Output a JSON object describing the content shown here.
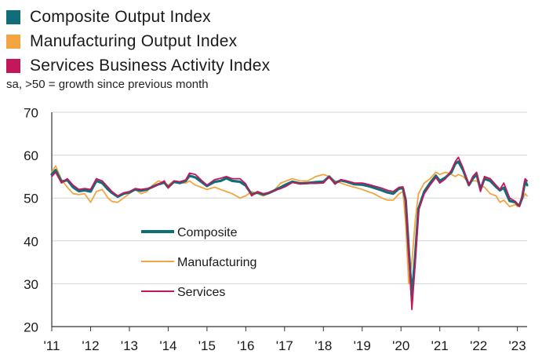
{
  "top_legend": [
    {
      "label": "Composite Output Index",
      "color": "#0f6e7a"
    },
    {
      "label": "Manufacturing Output Index",
      "color": "#f2a541"
    },
    {
      "label": "Services Business Activity Index",
      "color": "#c2185b"
    }
  ],
  "note": "sa, >50 = growth since previous month",
  "chart_data": {
    "type": "line",
    "title": "",
    "xlabel": "",
    "ylabel": "",
    "ylim": [
      20,
      70
    ],
    "yticks": [
      20,
      30,
      40,
      50,
      60,
      70
    ],
    "xlim": [
      2011,
      2023.25
    ],
    "xticks": [
      {
        "x": 2011,
        "label": "'11"
      },
      {
        "x": 2012,
        "label": "'12"
      },
      {
        "x": 2013,
        "label": "'13"
      },
      {
        "x": 2014,
        "label": "'14"
      },
      {
        "x": 2015,
        "label": "'15"
      },
      {
        "x": 2016,
        "label": "'16"
      },
      {
        "x": 2017,
        "label": "'17"
      },
      {
        "x": 2018,
        "label": "'18"
      },
      {
        "x": 2019,
        "label": "'19"
      },
      {
        "x": 2020,
        "label": "'20"
      },
      {
        "x": 2021,
        "label": "'21"
      },
      {
        "x": 2022,
        "label": "'22"
      },
      {
        "x": 2023,
        "label": "'23"
      }
    ],
    "grid": "horizontal",
    "inner_legend": [
      "Composite",
      "Manufacturing",
      "Services"
    ],
    "series": [
      {
        "name": "Composite",
        "color": "#0f6e7a",
        "points": [
          [
            2011.0,
            55.5
          ],
          [
            2011.1,
            56.5
          ],
          [
            2011.25,
            53.8
          ],
          [
            2011.4,
            54.2
          ],
          [
            2011.55,
            52.5
          ],
          [
            2011.7,
            51.6
          ],
          [
            2011.85,
            51.8
          ],
          [
            2012.0,
            51.5
          ],
          [
            2012.15,
            54.0
          ],
          [
            2012.3,
            53.5
          ],
          [
            2012.45,
            52.0
          ],
          [
            2012.55,
            51.2
          ],
          [
            2012.7,
            50.3
          ],
          [
            2012.85,
            51.0
          ],
          [
            2013.0,
            51.3
          ],
          [
            2013.15,
            52.0
          ],
          [
            2013.3,
            51.7
          ],
          [
            2013.45,
            52.0
          ],
          [
            2013.6,
            52.6
          ],
          [
            2013.75,
            53.2
          ],
          [
            2013.9,
            53.6
          ],
          [
            2014.0,
            52.5
          ],
          [
            2014.15,
            53.8
          ],
          [
            2014.3,
            53.5
          ],
          [
            2014.45,
            54.0
          ],
          [
            2014.55,
            55.2
          ],
          [
            2014.7,
            54.8
          ],
          [
            2014.85,
            53.8
          ],
          [
            2015.0,
            52.8
          ],
          [
            2015.2,
            53.8
          ],
          [
            2015.35,
            54.0
          ],
          [
            2015.5,
            54.6
          ],
          [
            2015.65,
            54.0
          ],
          [
            2015.85,
            53.8
          ],
          [
            2016.0,
            52.9
          ],
          [
            2016.15,
            50.8
          ],
          [
            2016.3,
            51.3
          ],
          [
            2016.45,
            50.8
          ],
          [
            2016.6,
            51.2
          ],
          [
            2016.75,
            51.8
          ],
          [
            2016.9,
            52.5
          ],
          [
            2017.05,
            53.2
          ],
          [
            2017.2,
            53.8
          ],
          [
            2017.4,
            53.4
          ],
          [
            2017.6,
            53.5
          ],
          [
            2017.8,
            53.7
          ],
          [
            2018.0,
            53.8
          ],
          [
            2018.15,
            55.0
          ],
          [
            2018.3,
            53.5
          ],
          [
            2018.45,
            54.1
          ],
          [
            2018.6,
            53.8
          ],
          [
            2018.8,
            53.2
          ],
          [
            2019.0,
            53.1
          ],
          [
            2019.15,
            52.8
          ],
          [
            2019.3,
            52.4
          ],
          [
            2019.5,
            51.8
          ],
          [
            2019.65,
            51.3
          ],
          [
            2019.8,
            51.0
          ],
          [
            2019.95,
            52.2
          ],
          [
            2020.05,
            52.3
          ],
          [
            2020.12,
            49.5
          ],
          [
            2020.2,
            38.0
          ],
          [
            2020.28,
            27.0
          ],
          [
            2020.37,
            37.0
          ],
          [
            2020.45,
            47.5
          ],
          [
            2020.6,
            51.5
          ],
          [
            2020.75,
            53.5
          ],
          [
            2020.9,
            55.2
          ],
          [
            2021.0,
            54.0
          ],
          [
            2021.15,
            54.8
          ],
          [
            2021.3,
            56.0
          ],
          [
            2021.4,
            58.0
          ],
          [
            2021.48,
            58.5
          ],
          [
            2021.6,
            56.5
          ],
          [
            2021.75,
            53.0
          ],
          [
            2021.85,
            54.5
          ],
          [
            2021.95,
            55.5
          ],
          [
            2022.05,
            52.0
          ],
          [
            2022.15,
            54.5
          ],
          [
            2022.3,
            54.0
          ],
          [
            2022.45,
            52.6
          ],
          [
            2022.55,
            51.8
          ],
          [
            2022.65,
            52.4
          ],
          [
            2022.8,
            49.3
          ],
          [
            2022.95,
            49.0
          ],
          [
            2023.0,
            48.5
          ],
          [
            2023.05,
            48.2
          ],
          [
            2023.12,
            50.0
          ],
          [
            2023.2,
            54.0
          ],
          [
            2023.25,
            53.0
          ]
        ]
      },
      {
        "name": "Manufacturing",
        "color": "#f2a541",
        "points": [
          [
            2011.0,
            56.0
          ],
          [
            2011.1,
            57.5
          ],
          [
            2011.25,
            54.3
          ],
          [
            2011.4,
            52.5
          ],
          [
            2011.55,
            51.0
          ],
          [
            2011.7,
            50.8
          ],
          [
            2011.85,
            51.0
          ],
          [
            2012.0,
            49.0
          ],
          [
            2012.15,
            51.5
          ],
          [
            2012.3,
            52.0
          ],
          [
            2012.45,
            50.0
          ],
          [
            2012.55,
            49.2
          ],
          [
            2012.7,
            49.0
          ],
          [
            2012.85,
            50.0
          ],
          [
            2013.0,
            51.0
          ],
          [
            2013.15,
            52.0
          ],
          [
            2013.3,
            51.0
          ],
          [
            2013.45,
            51.5
          ],
          [
            2013.6,
            53.0
          ],
          [
            2013.75,
            54.0
          ],
          [
            2013.9,
            53.5
          ],
          [
            2014.0,
            53.0
          ],
          [
            2014.15,
            54.0
          ],
          [
            2014.3,
            53.5
          ],
          [
            2014.45,
            53.5
          ],
          [
            2014.55,
            54.0
          ],
          [
            2014.7,
            53.0
          ],
          [
            2014.85,
            52.5
          ],
          [
            2015.0,
            52.0
          ],
          [
            2015.2,
            52.5
          ],
          [
            2015.35,
            52.0
          ],
          [
            2015.5,
            51.5
          ],
          [
            2015.65,
            51.0
          ],
          [
            2015.85,
            50.0
          ],
          [
            2016.0,
            50.5
          ],
          [
            2016.15,
            51.5
          ],
          [
            2016.3,
            51.0
          ],
          [
            2016.45,
            50.5
          ],
          [
            2016.6,
            51.0
          ],
          [
            2016.75,
            52.0
          ],
          [
            2016.9,
            53.5
          ],
          [
            2017.05,
            54.0
          ],
          [
            2017.2,
            54.5
          ],
          [
            2017.4,
            54.0
          ],
          [
            2017.6,
            54.0
          ],
          [
            2017.8,
            55.0
          ],
          [
            2018.0,
            55.5
          ],
          [
            2018.15,
            55.0
          ],
          [
            2018.3,
            54.0
          ],
          [
            2018.45,
            53.5
          ],
          [
            2018.6,
            53.0
          ],
          [
            2018.8,
            52.5
          ],
          [
            2019.0,
            52.0
          ],
          [
            2019.15,
            51.5
          ],
          [
            2019.3,
            51.0
          ],
          [
            2019.5,
            50.0
          ],
          [
            2019.65,
            49.5
          ],
          [
            2019.8,
            49.5
          ],
          [
            2019.95,
            51.0
          ],
          [
            2020.05,
            51.5
          ],
          [
            2020.12,
            44.0
          ],
          [
            2020.2,
            30.0
          ],
          [
            2020.28,
            35.0
          ],
          [
            2020.37,
            45.0
          ],
          [
            2020.45,
            51.0
          ],
          [
            2020.6,
            53.5
          ],
          [
            2020.75,
            54.5
          ],
          [
            2020.9,
            56.0
          ],
          [
            2021.0,
            55.5
          ],
          [
            2021.15,
            56.0
          ],
          [
            2021.3,
            55.5
          ],
          [
            2021.4,
            55.0
          ],
          [
            2021.48,
            55.5
          ],
          [
            2021.6,
            55.0
          ],
          [
            2021.75,
            53.5
          ],
          [
            2021.85,
            54.0
          ],
          [
            2021.95,
            54.0
          ],
          [
            2022.05,
            53.0
          ],
          [
            2022.15,
            52.5
          ],
          [
            2022.3,
            51.0
          ],
          [
            2022.45,
            50.5
          ],
          [
            2022.55,
            49.0
          ],
          [
            2022.65,
            49.5
          ],
          [
            2022.8,
            48.0
          ],
          [
            2022.95,
            48.5
          ],
          [
            2023.0,
            48.0
          ],
          [
            2023.05,
            48.5
          ],
          [
            2023.12,
            49.5
          ],
          [
            2023.2,
            51.0
          ],
          [
            2023.25,
            50.5
          ]
        ]
      },
      {
        "name": "Services",
        "color": "#c2185b",
        "points": [
          [
            2011.0,
            55.0
          ],
          [
            2011.1,
            56.0
          ],
          [
            2011.25,
            53.5
          ],
          [
            2011.4,
            54.5
          ],
          [
            2011.55,
            53.0
          ],
          [
            2011.7,
            52.0
          ],
          [
            2011.85,
            52.2
          ],
          [
            2012.0,
            52.0
          ],
          [
            2012.15,
            54.5
          ],
          [
            2012.3,
            54.0
          ],
          [
            2012.45,
            52.5
          ],
          [
            2012.55,
            51.5
          ],
          [
            2012.7,
            50.5
          ],
          [
            2012.85,
            51.2
          ],
          [
            2013.0,
            51.5
          ],
          [
            2013.15,
            52.2
          ],
          [
            2013.3,
            52.0
          ],
          [
            2013.45,
            52.2
          ],
          [
            2013.6,
            52.5
          ],
          [
            2013.75,
            53.2
          ],
          [
            2013.9,
            54.0
          ],
          [
            2014.0,
            52.3
          ],
          [
            2014.15,
            54.0
          ],
          [
            2014.3,
            53.8
          ],
          [
            2014.45,
            54.2
          ],
          [
            2014.55,
            55.8
          ],
          [
            2014.7,
            55.5
          ],
          [
            2014.85,
            54.2
          ],
          [
            2015.0,
            53.0
          ],
          [
            2015.2,
            54.3
          ],
          [
            2015.35,
            54.6
          ],
          [
            2015.5,
            55.0
          ],
          [
            2015.65,
            54.5
          ],
          [
            2015.85,
            54.5
          ],
          [
            2016.0,
            53.3
          ],
          [
            2016.15,
            50.5
          ],
          [
            2016.3,
            51.5
          ],
          [
            2016.45,
            51.0
          ],
          [
            2016.6,
            51.2
          ],
          [
            2016.75,
            51.8
          ],
          [
            2016.9,
            52.2
          ],
          [
            2017.05,
            52.8
          ],
          [
            2017.2,
            53.6
          ],
          [
            2017.4,
            53.3
          ],
          [
            2017.6,
            53.4
          ],
          [
            2017.8,
            53.4
          ],
          [
            2018.0,
            53.5
          ],
          [
            2018.15,
            55.0
          ],
          [
            2018.3,
            53.2
          ],
          [
            2018.45,
            54.3
          ],
          [
            2018.6,
            54.0
          ],
          [
            2018.8,
            53.5
          ],
          [
            2019.0,
            53.5
          ],
          [
            2019.15,
            53.2
          ],
          [
            2019.3,
            52.8
          ],
          [
            2019.5,
            52.3
          ],
          [
            2019.65,
            51.8
          ],
          [
            2019.8,
            51.5
          ],
          [
            2019.95,
            52.5
          ],
          [
            2020.05,
            52.6
          ],
          [
            2020.12,
            49.5
          ],
          [
            2020.2,
            37.0
          ],
          [
            2020.28,
            24.0
          ],
          [
            2020.37,
            35.0
          ],
          [
            2020.45,
            47.0
          ],
          [
            2020.6,
            51.0
          ],
          [
            2020.75,
            53.0
          ],
          [
            2020.9,
            54.8
          ],
          [
            2021.0,
            53.5
          ],
          [
            2021.15,
            54.5
          ],
          [
            2021.3,
            56.5
          ],
          [
            2021.4,
            58.5
          ],
          [
            2021.48,
            59.5
          ],
          [
            2021.6,
            57.0
          ],
          [
            2021.75,
            53.0
          ],
          [
            2021.85,
            55.0
          ],
          [
            2021.95,
            56.0
          ],
          [
            2022.05,
            51.5
          ],
          [
            2022.15,
            55.0
          ],
          [
            2022.3,
            54.5
          ],
          [
            2022.45,
            53.0
          ],
          [
            2022.55,
            52.0
          ],
          [
            2022.65,
            53.5
          ],
          [
            2022.8,
            50.0
          ],
          [
            2022.95,
            49.2
          ],
          [
            2023.0,
            48.5
          ],
          [
            2023.05,
            48.0
          ],
          [
            2023.12,
            50.5
          ],
          [
            2023.2,
            54.5
          ],
          [
            2023.25,
            54.0
          ]
        ]
      }
    ]
  }
}
